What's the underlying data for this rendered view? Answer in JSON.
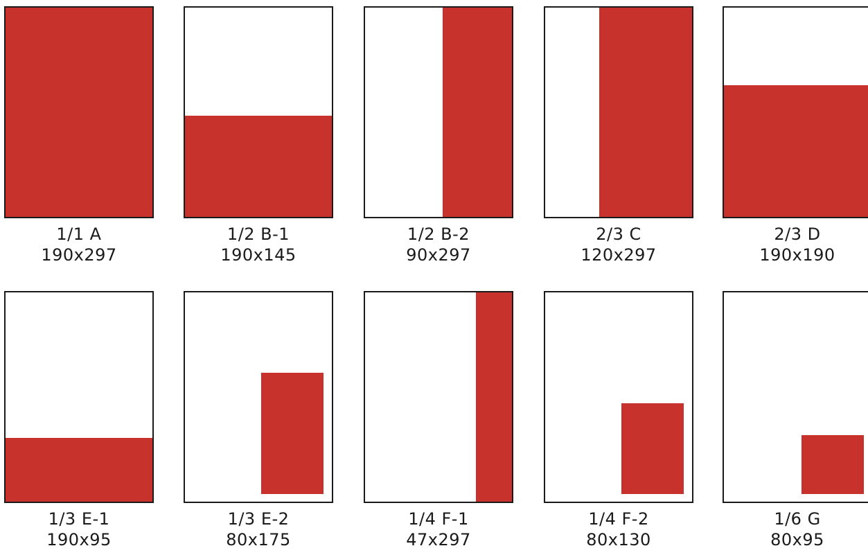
{
  "accent_color": "#c8322d",
  "formats": [
    {
      "name": "1/1 A",
      "size": "190x297"
    },
    {
      "name": "1/2 B-1",
      "size": "190x145"
    },
    {
      "name": "1/2 B-2",
      "size": "90x297"
    },
    {
      "name": "2/3 C",
      "size": "120x297"
    },
    {
      "name": "2/3 D",
      "size": "190x190"
    },
    {
      "name": "1/3 E-1",
      "size": "190x95"
    },
    {
      "name": "1/3 E-2",
      "size": "80x175"
    },
    {
      "name": "1/4 F-1",
      "size": "47x297"
    },
    {
      "name": "1/4 F-2",
      "size": "80x130"
    },
    {
      "name": "1/6 G",
      "size": "80x95"
    }
  ]
}
